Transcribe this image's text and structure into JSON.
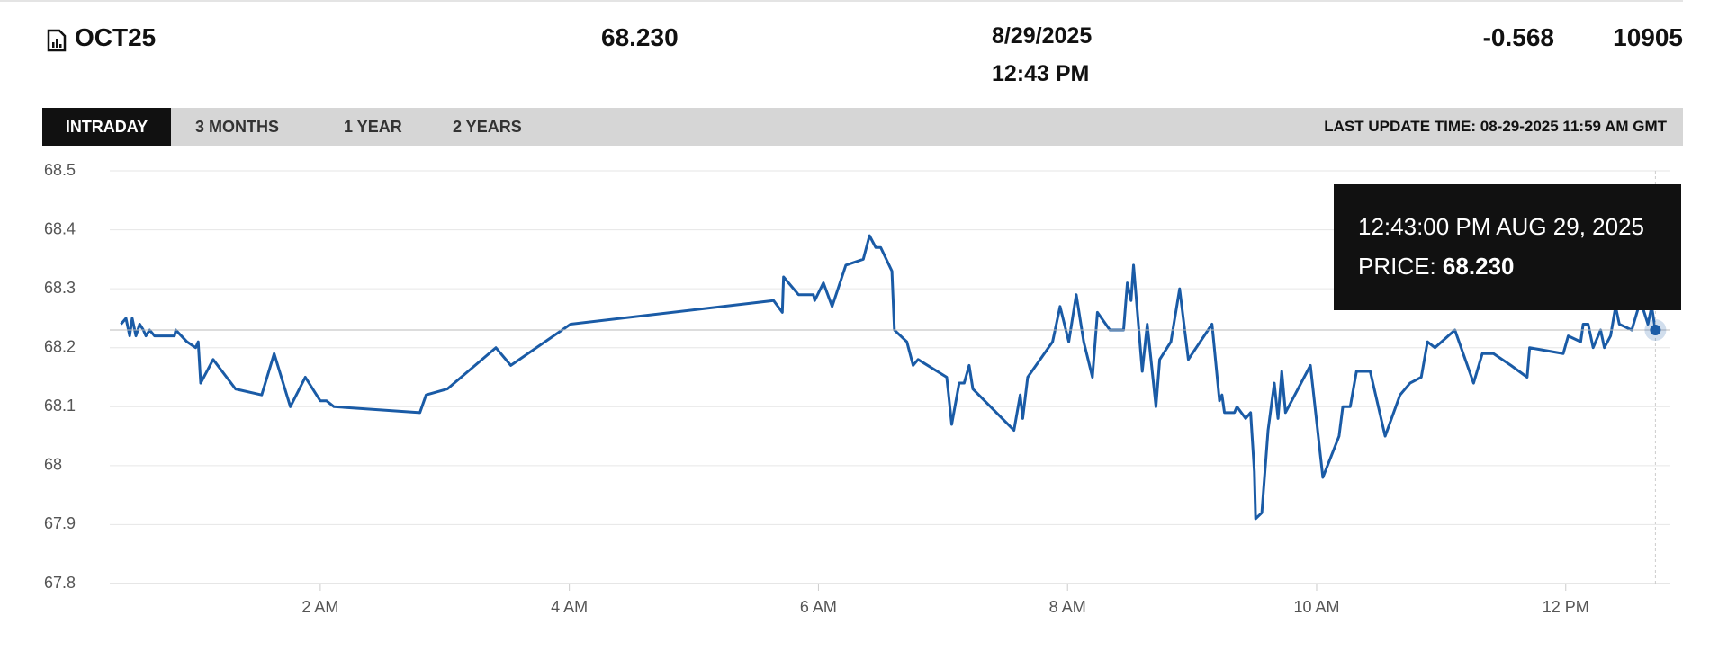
{
  "header": {
    "symbol": "OCT25",
    "last": "68.230",
    "date": "8/29/2025",
    "time": "12:43 PM",
    "change": "-0.568",
    "volume": "10905"
  },
  "tabs": [
    "INTRADAY",
    "3 MONTHS",
    "1 YEAR",
    "2 YEARS"
  ],
  "last_update": "LAST UPDATE TIME: 08-29-2025 11:59 AM GMT",
  "tooltip": {
    "time": "12:43:00 PM AUG 29, 2025",
    "label": "PRICE:",
    "value": "68.230"
  },
  "chart_data": {
    "type": "line",
    "x": [
      0.4,
      0.44,
      0.47,
      0.49,
      0.52,
      0.55,
      0.58,
      0.6,
      0.63,
      0.67,
      0.83,
      0.84,
      0.93,
      1.0,
      1.02,
      1.04,
      1.14,
      1.32,
      1.53,
      1.63,
      1.76,
      1.88,
      2.0,
      2.05,
      2.11,
      2.8,
      2.85,
      3.02,
      3.41,
      3.53,
      4.01,
      5.64,
      5.71,
      5.72,
      5.84,
      5.96,
      5.97,
      6.04,
      6.11,
      6.22,
      6.36,
      6.41,
      6.46,
      6.5,
      6.59,
      6.61,
      6.71,
      6.76,
      6.8,
      7.03,
      7.07,
      7.13,
      7.17,
      7.21,
      7.24,
      7.57,
      7.62,
      7.64,
      7.68,
      7.88,
      7.94,
      8.01,
      8.07,
      8.13,
      8.2,
      8.24,
      8.34,
      8.45,
      8.48,
      8.51,
      8.53,
      8.6,
      8.64,
      8.71,
      8.74,
      8.83,
      8.9,
      8.97,
      9.16,
      9.22,
      9.24,
      9.26,
      9.34,
      9.36,
      9.43,
      9.47,
      9.5,
      9.51,
      9.56,
      9.61,
      9.66,
      9.69,
      9.72,
      9.75,
      9.8,
      9.95,
      10.05,
      10.18,
      10.21,
      10.27,
      10.32,
      10.43,
      10.55,
      10.67,
      10.75,
      10.84,
      10.89,
      10.95,
      11.11,
      11.26,
      11.33,
      11.42,
      11.56,
      11.69,
      11.71,
      11.98,
      12.02,
      12.12,
      12.14,
      12.18,
      12.22,
      12.28,
      12.31,
      12.36,
      12.4,
      12.43,
      12.53,
      12.6,
      12.66,
      12.69,
      12.72
    ],
    "series": [
      {
        "name": "OCT25",
        "color": "#1a5ba6",
        "values": [
          68.24,
          68.25,
          68.22,
          68.25,
          68.22,
          68.24,
          68.23,
          68.22,
          68.23,
          68.22,
          68.22,
          68.23,
          68.21,
          68.2,
          68.21,
          68.14,
          68.18,
          68.13,
          68.12,
          68.19,
          68.1,
          68.15,
          68.11,
          68.11,
          68.1,
          68.09,
          68.12,
          68.13,
          68.2,
          68.17,
          68.24,
          68.28,
          68.26,
          68.32,
          68.29,
          68.29,
          68.28,
          68.31,
          68.27,
          68.34,
          68.35,
          68.39,
          68.37,
          68.37,
          68.33,
          68.23,
          68.21,
          68.17,
          68.18,
          68.15,
          68.07,
          68.14,
          68.14,
          68.17,
          68.13,
          68.06,
          68.12,
          68.08,
          68.15,
          68.21,
          68.27,
          68.21,
          68.29,
          68.21,
          68.15,
          68.26,
          68.23,
          68.23,
          68.31,
          68.28,
          68.34,
          68.16,
          68.24,
          68.1,
          68.18,
          68.21,
          68.3,
          68.18,
          68.24,
          68.11,
          68.12,
          68.09,
          68.09,
          68.1,
          68.08,
          68.09,
          67.99,
          67.91,
          67.92,
          68.06,
          68.14,
          68.08,
          68.16,
          68.09,
          68.11,
          68.17,
          67.98,
          68.05,
          68.1,
          68.1,
          68.16,
          68.16,
          68.05,
          68.12,
          68.14,
          68.15,
          68.21,
          68.2,
          68.23,
          68.14,
          68.19,
          68.19,
          68.17,
          68.15,
          68.2,
          68.19,
          68.22,
          68.21,
          68.24,
          68.24,
          68.2,
          68.23,
          68.2,
          68.22,
          68.27,
          68.24,
          68.23,
          68.28,
          68.24,
          68.27,
          68.23
        ]
      }
    ],
    "xlim": [
      0.31,
      12.84
    ],
    "xticks": [
      {
        "value": 2,
        "label": "2 AM"
      },
      {
        "value": 4,
        "label": "4 AM"
      },
      {
        "value": 6,
        "label": "6 AM"
      },
      {
        "value": 8,
        "label": "8 AM"
      },
      {
        "value": 10,
        "label": "10 AM"
      },
      {
        "value": 12,
        "label": "12 PM"
      }
    ],
    "ylim": [
      67.8,
      68.5
    ],
    "yticks": [
      67.8,
      67.9,
      68,
      68.1,
      68.2,
      68.3,
      68.4,
      68.5
    ],
    "grid": true
  }
}
